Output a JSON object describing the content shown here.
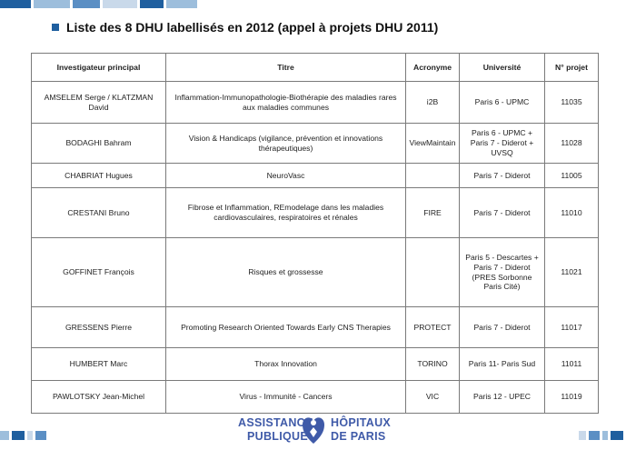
{
  "header": {
    "title": "Liste des 8 DHU labellisés en 2012 (appel à projets DHU 2011)"
  },
  "table": {
    "columns": [
      "Investigateur principal",
      "Titre",
      "Acronyme",
      "Université",
      "N° projet"
    ],
    "rows": [
      [
        "AMSELEM Serge / KLATZMAN David",
        "Inflammation-Immunopathologie-Biothérapie des maladies rares aux maladies communes",
        "i2B",
        "Paris 6 - UPMC",
        "11035"
      ],
      [
        "BODAGHI Bahram",
        "Vision & Handicaps (vigilance, prévention et innovations thérapeutiques)",
        "ViewMaintain",
        "Paris 6 - UPMC + Paris 7 - Diderot + UVSQ",
        "11028"
      ],
      [
        "CHABRIAT Hugues",
        "NeuroVasc",
        "",
        "Paris 7 - Diderot",
        "11005"
      ],
      [
        "CRESTANI Bruno",
        "Fibrose et Inflammation, REmodelage dans les maladies cardiovasculaires, respiratoires et rénales",
        "FIRE",
        "Paris 7 - Diderot",
        "11010"
      ],
      [
        "GOFFINET François",
        "Risques et grossesse",
        "",
        "Paris 5 - Descartes + Paris 7 - Diderot (PRES Sorbonne Paris Cité)",
        "11021"
      ],
      [
        "GRESSENS Pierre",
        "Promoting Research Oriented Towards Early CNS Therapies",
        "PROTECT",
        "Paris 7 - Diderot",
        "11017"
      ],
      [
        "HUMBERT Marc",
        "Thorax Innovation",
        "TORINO",
        "Paris 11- Paris Sud",
        "11011"
      ],
      [
        "PAWLOTSKY Jean-Michel",
        "Virus - Immunité - Cancers",
        "VIC",
        "Paris 12 - UPEC",
        "11019"
      ]
    ]
  },
  "footer": {
    "logo_line1_left": "ASSISTANCE",
    "logo_line2_left": "PUBLIQUE",
    "logo_line1_right": "HÔPITAUX",
    "logo_line2_right": "DE PARIS"
  },
  "colors": {
    "accent_blue": "#1f5f9f",
    "logo_blue": "#3f5aa8",
    "decor_squares": [
      "#1f5f9f",
      "#5b8fc4",
      "#9dbedc",
      "#c9d9ea"
    ]
  }
}
